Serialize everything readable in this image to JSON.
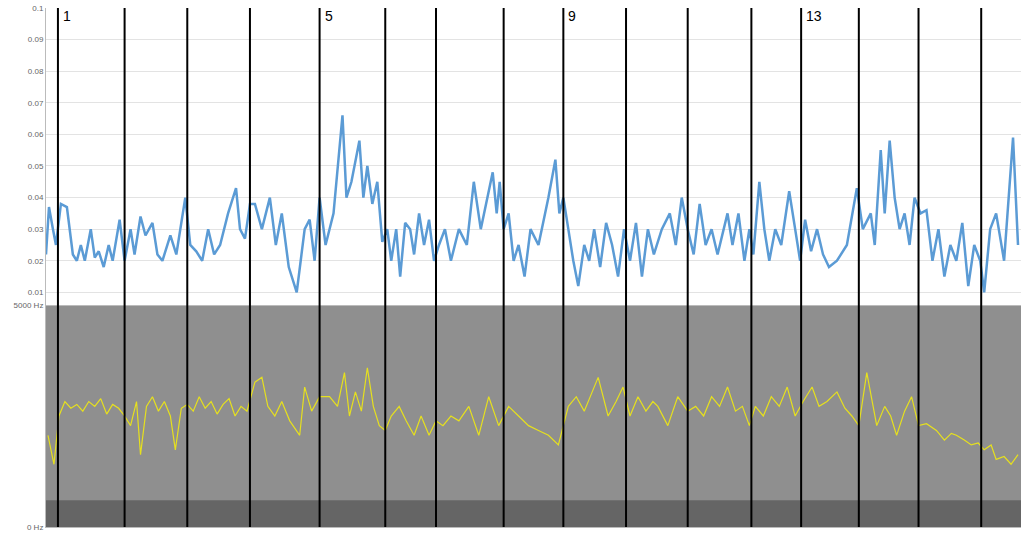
{
  "chart_data": [
    {
      "type": "line",
      "x": [
        0,
        3,
        7,
        10,
        15,
        21,
        27,
        31,
        35,
        39,
        45,
        49,
        53,
        58,
        63,
        67,
        74,
        79,
        85,
        89,
        95,
        100,
        107,
        112,
        117,
        125,
        131,
        140,
        145,
        151,
        157,
        163,
        169,
        175,
        183,
        191,
        195,
        200,
        205,
        210,
        217,
        225,
        231,
        237,
        244,
        252,
        256,
        260,
        265,
        270,
        275,
        281,
        289,
        298,
        302,
        307,
        315,
        319,
        323,
        328,
        333,
        338,
        343,
        347,
        352,
        356,
        361,
        366,
        370,
        375,
        380,
        385,
        390,
        395,
        401,
        407,
        415,
        423,
        430,
        437,
        449,
        453,
        456,
        460,
        465,
        470,
        475,
        481,
        487,
        495,
        505,
        512,
        516,
        520,
        525,
        530,
        535,
        541,
        546,
        551,
        557,
        563,
        569,
        575,
        581,
        587,
        593,
        599,
        605,
        611,
        619,
        627,
        633,
        639,
        645,
        651,
        657,
        663,
        669,
        675,
        685,
        690,
        696,
        702,
        707,
        711,
        717,
        722,
        727,
        733,
        739,
        747,
        753,
        758,
        763,
        769,
        775,
        781,
        787,
        795,
        805,
        815,
        821,
        829,
        833,
        839,
        843,
        848,
        853,
        858,
        863,
        868,
        873,
        879,
        885,
        891,
        897,
        903,
        909,
        915,
        921,
        927,
        933,
        939,
        943,
        949,
        955,
        963,
        972,
        977
      ],
      "values": [
        0.022,
        0.037,
        0.03,
        0.025,
        0.038,
        0.037,
        0.022,
        0.02,
        0.025,
        0.02,
        0.03,
        0.021,
        0.023,
        0.018,
        0.025,
        0.02,
        0.033,
        0.02,
        0.03,
        0.022,
        0.034,
        0.028,
        0.032,
        0.022,
        0.02,
        0.028,
        0.022,
        0.04,
        0.025,
        0.023,
        0.02,
        0.03,
        0.022,
        0.025,
        0.035,
        0.043,
        0.03,
        0.027,
        0.038,
        0.038,
        0.03,
        0.04,
        0.025,
        0.035,
        0.018,
        0.01,
        0.02,
        0.03,
        0.033,
        0.02,
        0.04,
        0.025,
        0.035,
        0.066,
        0.04,
        0.045,
        0.058,
        0.04,
        0.05,
        0.038,
        0.045,
        0.026,
        0.03,
        0.02,
        0.03,
        0.015,
        0.032,
        0.03,
        0.022,
        0.035,
        0.025,
        0.033,
        0.02,
        0.025,
        0.03,
        0.02,
        0.03,
        0.025,
        0.045,
        0.03,
        0.048,
        0.035,
        0.045,
        0.03,
        0.035,
        0.02,
        0.025,
        0.015,
        0.03,
        0.025,
        0.04,
        0.052,
        0.035,
        0.04,
        0.03,
        0.02,
        0.012,
        0.025,
        0.02,
        0.03,
        0.018,
        0.032,
        0.025,
        0.015,
        0.03,
        0.02,
        0.032,
        0.015,
        0.03,
        0.022,
        0.03,
        0.035,
        0.025,
        0.04,
        0.03,
        0.022,
        0.038,
        0.025,
        0.03,
        0.022,
        0.035,
        0.025,
        0.035,
        0.02,
        0.03,
        0.022,
        0.045,
        0.03,
        0.02,
        0.03,
        0.025,
        0.042,
        0.03,
        0.02,
        0.033,
        0.023,
        0.03,
        0.022,
        0.018,
        0.02,
        0.025,
        0.043,
        0.03,
        0.035,
        0.025,
        0.055,
        0.035,
        0.058,
        0.04,
        0.03,
        0.035,
        0.025,
        0.04,
        0.035,
        0.036,
        0.02,
        0.03,
        0.015,
        0.025,
        0.02,
        0.032,
        0.012,
        0.025,
        0.02,
        0.01,
        0.03,
        0.035,
        0.02,
        0.059,
        0.025
      ],
      "color": "#5b9bd5",
      "xlim": [
        0,
        980
      ],
      "ylim": [
        0.006,
        0.1
      ],
      "yticks": [
        0.01,
        0.02,
        0.03,
        0.04,
        0.05,
        0.06,
        0.07,
        0.08,
        0.09,
        0.1
      ],
      "grid": true,
      "tick_labels": "y"
    },
    {
      "type": "line",
      "x": [
        2,
        8,
        13,
        19,
        25,
        31,
        37,
        43,
        49,
        55,
        61,
        67,
        73,
        79,
        85,
        91,
        95,
        101,
        107,
        113,
        119,
        125,
        130,
        136,
        142,
        148,
        154,
        160,
        166,
        172,
        178,
        184,
        190,
        196,
        202,
        210,
        217,
        223,
        230,
        237,
        245,
        255,
        260,
        267,
        275,
        285,
        293,
        300,
        305,
        311,
        317,
        323,
        329,
        335,
        341,
        347,
        355,
        362,
        370,
        377,
        385,
        392,
        399,
        407,
        415,
        425,
        435,
        445,
        455,
        465,
        475,
        485,
        495,
        505,
        515,
        525,
        533,
        541,
        549,
        555,
        565,
        573,
        580,
        587,
        595,
        603,
        610,
        615,
        625,
        635,
        645,
        653,
        661,
        669,
        677,
        685,
        693,
        700,
        707,
        713,
        721,
        729,
        737,
        745,
        753,
        761,
        770,
        777,
        785,
        795,
        803,
        810,
        817,
        825,
        835,
        843,
        849,
        855,
        863,
        870,
        877,
        885,
        895,
        903,
        910,
        915,
        923,
        930,
        937,
        943,
        950,
        955,
        963,
        970,
        977
      ],
      "values": [
        2065,
        1413,
        2500,
        2826,
        2674,
        2761,
        2609,
        2826,
        2717,
        2891,
        2543,
        2761,
        2674,
        2500,
        2283,
        2826,
        1630,
        2717,
        2935,
        2609,
        2826,
        2500,
        1739,
        2674,
        2761,
        2609,
        2935,
        2674,
        2826,
        2543,
        2761,
        2891,
        2500,
        2717,
        2609,
        3261,
        3370,
        2717,
        2500,
        2826,
        2391,
        2065,
        3152,
        2609,
        2935,
        2935,
        2717,
        3478,
        2500,
        3043,
        2609,
        3587,
        2717,
        2283,
        2174,
        2500,
        2717,
        2391,
        2065,
        2500,
        2065,
        2391,
        2283,
        2500,
        2391,
        2717,
        2065,
        2935,
        2283,
        2717,
        2500,
        2283,
        2174,
        2065,
        1848,
        2717,
        2935,
        2609,
        3043,
        3370,
        2500,
        2826,
        3152,
        2500,
        2935,
        2609,
        2826,
        2717,
        2283,
        2935,
        2609,
        2717,
        2500,
        2935,
        2717,
        3152,
        2609,
        2717,
        2283,
        2717,
        2500,
        2935,
        2717,
        3152,
        2500,
        2826,
        3152,
        2717,
        2826,
        3043,
        2674,
        2500,
        2283,
        3478,
        2283,
        2717,
        2500,
        2065,
        2609,
        2935,
        2283,
        2326,
        2174,
        1957,
        2109,
        2065,
        1957,
        1848,
        1891,
        1739,
        1848,
        1522,
        1587,
        1413,
        1630
      ],
      "color": "#e6e01e",
      "xlim": [
        0,
        980
      ],
      "ylim": [
        0,
        5000
      ],
      "yticks": [
        {
          "value": 0,
          "label": "0 Hz"
        },
        {
          "value": 5000,
          "label": "5000 Hz"
        }
      ],
      "grid": false,
      "tick_labels": "y"
    }
  ],
  "boundaries": {
    "x": [
      12,
      79,
      142,
      205,
      275,
      341,
      392,
      460,
      520,
      583,
      645,
      709,
      759,
      817,
      877,
      940
    ],
    "labels": [
      "1",
      null,
      null,
      null,
      "5",
      null,
      null,
      null,
      "9",
      null,
      null,
      null,
      "13",
      null,
      null,
      null
    ]
  }
}
